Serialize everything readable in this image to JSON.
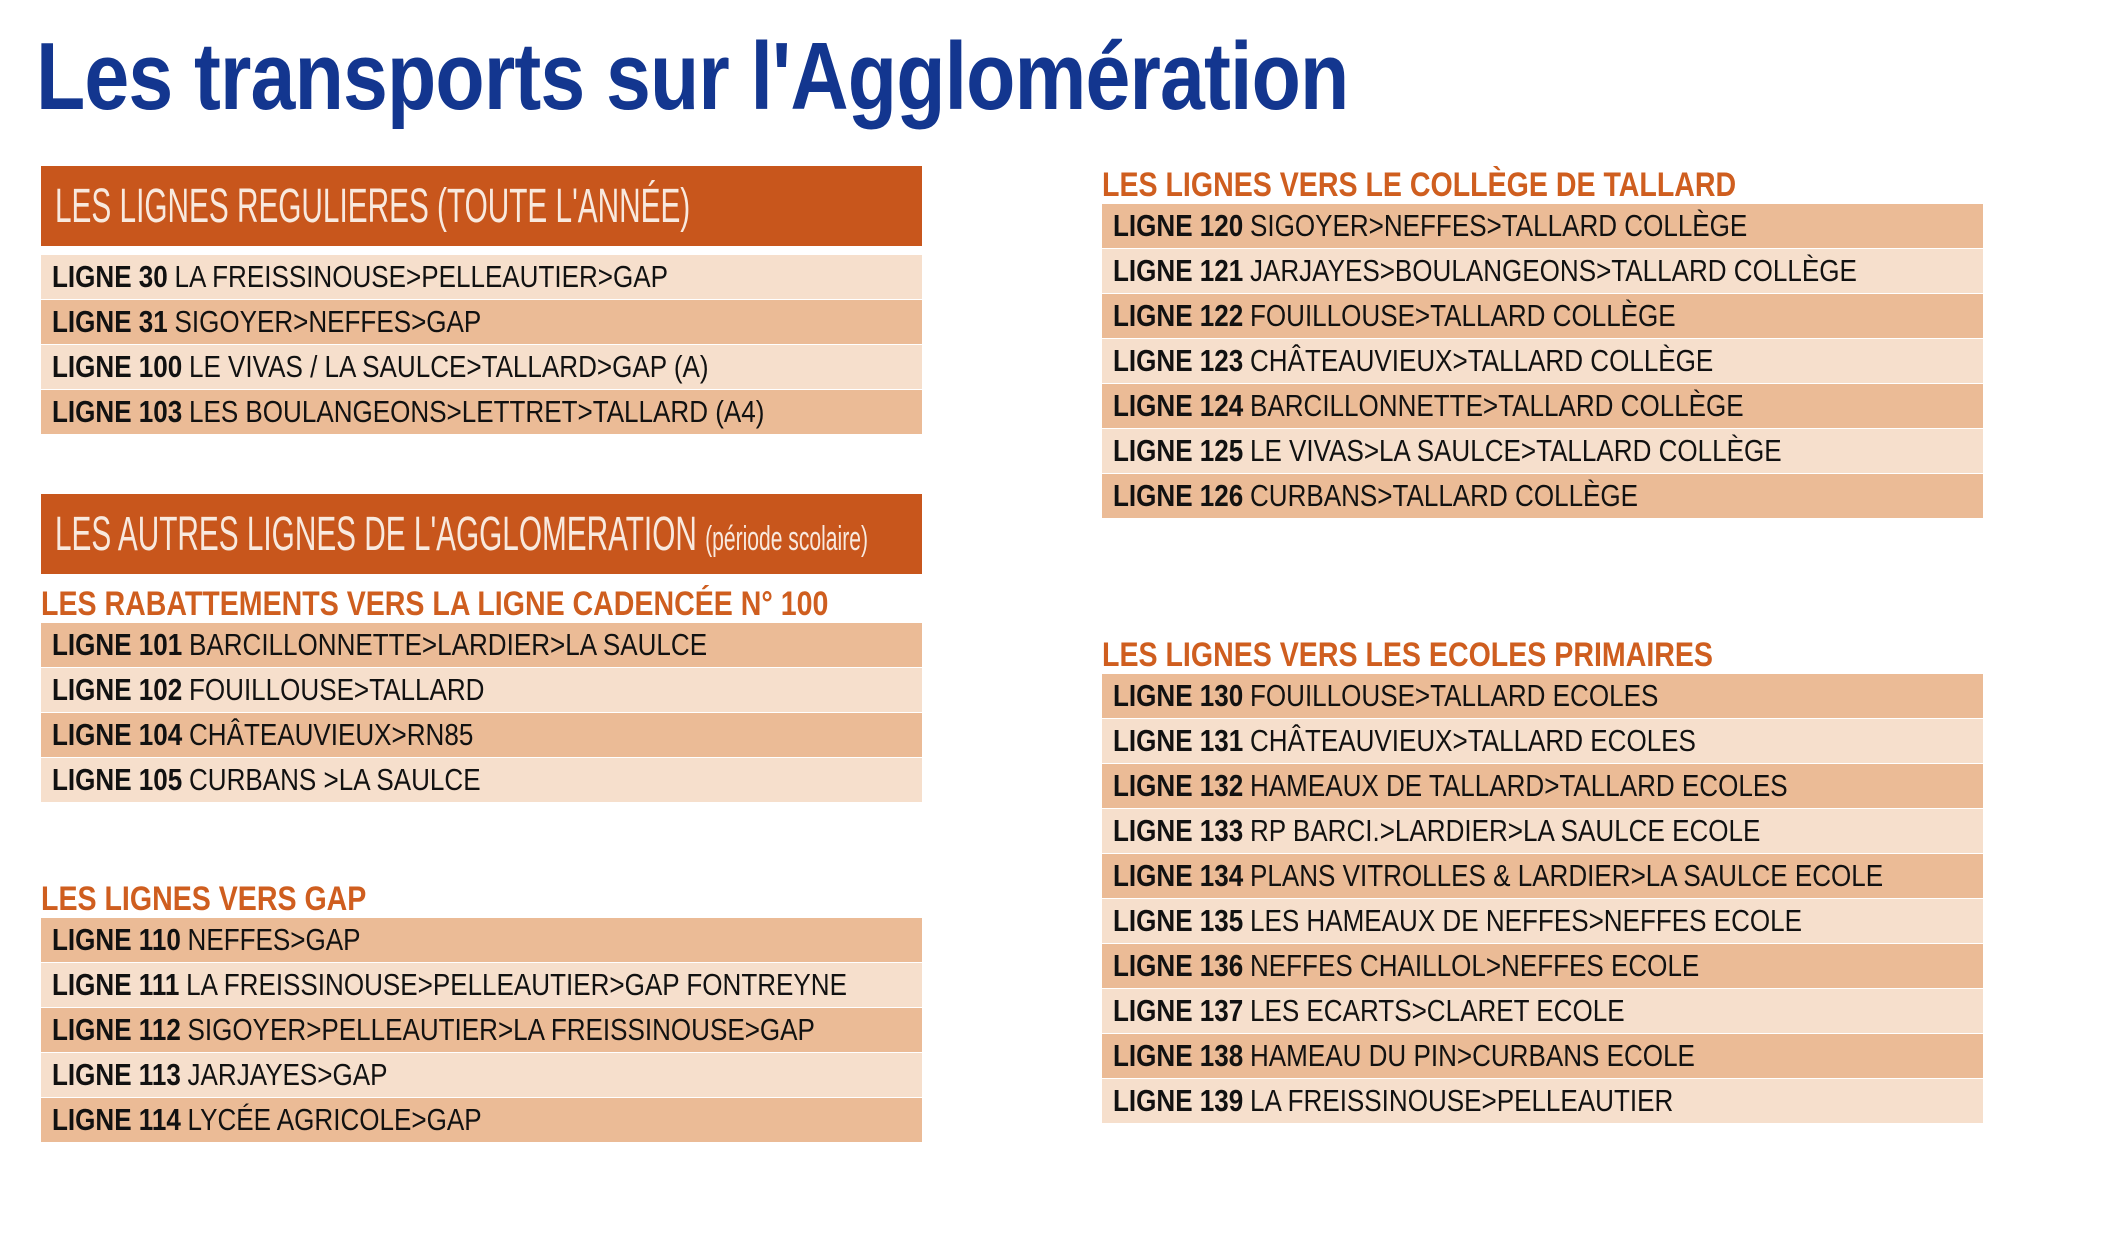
{
  "title": "Les transports sur l'Agglomération",
  "regular": {
    "banner": "LES LIGNES REGULIERES (TOUTE L'ANNÉE)",
    "rows": [
      {
        "line": "LIGNE 30",
        "route": "LA FREISSINOUSE>PELLEAUTIER>GAP"
      },
      {
        "line": "LIGNE 31",
        "route": "SIGOYER>NEFFES>GAP"
      },
      {
        "line": "LIGNE 100",
        "route": "LE VIVAS / LA SAULCE>TALLARD>GAP (A)"
      },
      {
        "line": "LIGNE 103",
        "route": "LES BOULANGEONS>LETTRET>TALLARD (A4)"
      }
    ]
  },
  "other": {
    "banner": "LES AUTRES LIGNES DE L'AGGLOMERATION",
    "note": "(période scolaire)"
  },
  "groups": [
    {
      "heading": "LES RABATTEMENTS VERS LA LIGNE CADENCÉE N° 100",
      "rows": [
        {
          "line": "LIGNE 101",
          "route": "BARCILLONNETTE>LARDIER>LA SAULCE"
        },
        {
          "line": "LIGNE 102",
          "route": "FOUILLOUSE>TALLARD"
        },
        {
          "line": "LIGNE 104",
          "route": "CHÂTEAUVIEUX>RN85"
        },
        {
          "line": "LIGNE 105",
          "route": "CURBANS >LA SAULCE"
        }
      ]
    },
    {
      "heading": "LES LIGNES VERS GAP",
      "rows": [
        {
          "line": "LIGNE 110",
          "route": "NEFFES>GAP"
        },
        {
          "line": "LIGNE 111",
          "route": "LA FREISSINOUSE>PELLEAUTIER>GAP FONTREYNE"
        },
        {
          "line": "LIGNE 112",
          "route": "SIGOYER>PELLEAUTIER>LA FREISSINOUSE>GAP"
        },
        {
          "line": "LIGNE 113",
          "route": "JARJAYES>GAP"
        },
        {
          "line": "LIGNE 114",
          "route": "LYCÉE AGRICOLE>GAP"
        }
      ]
    },
    {
      "heading": "LES LIGNES VERS LE COLLÈGE DE TALLARD",
      "rows": [
        {
          "line": "LIGNE 120",
          "route": "SIGOYER>NEFFES>TALLARD COLLÈGE"
        },
        {
          "line": "LIGNE 121",
          "route": "JARJAYES>BOULANGEONS>TALLARD COLLÈGE"
        },
        {
          "line": "LIGNE 122",
          "route": "FOUILLOUSE>TALLARD COLLÈGE"
        },
        {
          "line": "LIGNE 123",
          "route": "CHÂTEAUVIEUX>TALLARD COLLÈGE"
        },
        {
          "line": "LIGNE 124",
          "route": "BARCILLONNETTE>TALLARD COLLÈGE"
        },
        {
          "line": "LIGNE 125",
          "route": "LE VIVAS>LA SAULCE>TALLARD COLLÈGE"
        },
        {
          "line": "LIGNE 126",
          "route": "CURBANS>TALLARD COLLÈGE"
        }
      ]
    },
    {
      "heading": "LES LIGNES VERS LES ECOLES PRIMAIRES",
      "rows": [
        {
          "line": "LIGNE 130",
          "route": "FOUILLOUSE>TALLARD ECOLES"
        },
        {
          "line": "LIGNE 131",
          "route": "CHÂTEAUVIEUX>TALLARD ECOLES"
        },
        {
          "line": "LIGNE 132",
          "route": "HAMEAUX DE TALLARD>TALLARD ECOLES"
        },
        {
          "line": "LIGNE 133",
          "route": "RP BARCI.>LARDIER>LA SAULCE ECOLE"
        },
        {
          "line": "LIGNE 134",
          "route": "PLANS VITROLLES & LARDIER>LA SAULCE ECOLE"
        },
        {
          "line": "LIGNE 135",
          "route": "LES HAMEAUX DE NEFFES>NEFFES ECOLE"
        },
        {
          "line": "LIGNE 136",
          "route": "NEFFES CHAILLOL>NEFFES ECOLE"
        },
        {
          "line": "LIGNE 137",
          "route": "LES ECARTS>CLARET ECOLE"
        },
        {
          "line": "LIGNE 138",
          "route": "HAMEAU DU PIN>CURBANS ECOLE"
        },
        {
          "line": "LIGNE 139",
          "route": "LA FREISSINOUSE>PELLEAUTIER"
        }
      ]
    }
  ]
}
